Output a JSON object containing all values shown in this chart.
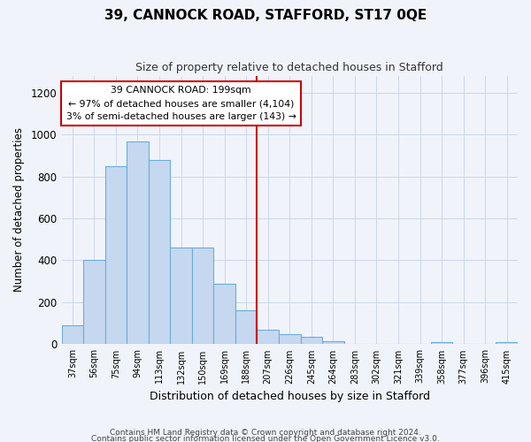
{
  "title": "39, CANNOCK ROAD, STAFFORD, ST17 0QE",
  "subtitle": "Size of property relative to detached houses in Stafford",
  "xlabel": "Distribution of detached houses by size in Stafford",
  "ylabel": "Number of detached properties",
  "footnote1": "Contains HM Land Registry data © Crown copyright and database right 2024.",
  "footnote2": "Contains public sector information licensed under the Open Government Licence v3.0.",
  "categories": [
    "37sqm",
    "56sqm",
    "75sqm",
    "94sqm",
    "113sqm",
    "132sqm",
    "150sqm",
    "169sqm",
    "188sqm",
    "207sqm",
    "226sqm",
    "245sqm",
    "264sqm",
    "283sqm",
    "302sqm",
    "321sqm",
    "339sqm",
    "358sqm",
    "377sqm",
    "396sqm",
    "415sqm"
  ],
  "values": [
    90,
    400,
    850,
    965,
    880,
    460,
    460,
    290,
    160,
    70,
    50,
    35,
    15,
    0,
    0,
    0,
    0,
    10,
    0,
    0,
    10
  ],
  "bar_color": "#c5d8f0",
  "bar_edge_color": "#6aaed6",
  "marker_index": 8.5,
  "marker_line_color": "#cc0000",
  "annotation_line1": "39 CANNOCK ROAD: 199sqm",
  "annotation_line2": "← 97% of detached houses are smaller (4,104)",
  "annotation_line3": "3% of semi-detached houses are larger (143) →",
  "annotation_box_facecolor": "#ffffff",
  "annotation_box_edgecolor": "#cc0000",
  "grid_color": "#d0d8e8",
  "background_color": "#ffffff",
  "fig_background_color": "#f0f4fa",
  "ylim": [
    0,
    1280
  ],
  "yticks": [
    0,
    200,
    400,
    600,
    800,
    1000,
    1200
  ]
}
